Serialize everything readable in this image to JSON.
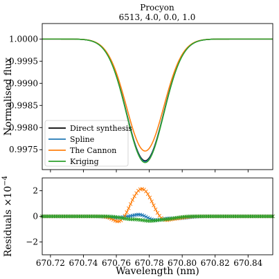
{
  "chart_data": [
    {
      "type": "line",
      "title": "Procyon",
      "subtitle": "6513, 4.0, 0.0, 1.0",
      "xlabel": "",
      "ylabel": "Normalised flux",
      "xlim": [
        670.715,
        670.855
      ],
      "ylim": [
        0.99705,
        1.00035
      ],
      "yticks": [
        0.9975,
        0.998,
        0.9985,
        0.999,
        0.9995,
        1.0
      ],
      "ytick_labels": [
        "0.9975",
        "0.9980",
        "0.9985",
        "0.9990",
        "0.9995",
        "1.0000"
      ],
      "grid": false,
      "legend_position": "bottom-left",
      "series": [
        {
          "name": "Direct synthesis",
          "color": "#000000",
          "center": 670.7775,
          "width": 0.0113,
          "depth": 0.00275
        },
        {
          "name": "Spline",
          "color": "#1f77b4",
          "center": 670.7775,
          "width": 0.0113,
          "depth": 0.00277
        },
        {
          "name": "The Cannon",
          "color": "#ff7f0e",
          "center": 670.7775,
          "width": 0.0113,
          "depth": 0.00253
        },
        {
          "name": "Kriging",
          "color": "#2ca02c",
          "center": 670.7775,
          "width": 0.0113,
          "depth": 0.00279
        }
      ]
    },
    {
      "type": "line",
      "xlabel": "Wavelength (nm)",
      "ylabel": "Residuals ×10",
      "ylabel_exp": "−4",
      "xlim": [
        670.715,
        670.855
      ],
      "ylim": [
        -3.0,
        3.0
      ],
      "xticks": [
        670.72,
        670.74,
        670.76,
        670.78,
        670.8,
        670.82,
        670.84
      ],
      "xtick_labels": [
        "670.72",
        "670.74",
        "670.76",
        "670.78",
        "670.80",
        "670.82",
        "670.84"
      ],
      "yticks": [
        -2,
        0,
        2
      ],
      "ytick_labels": [
        "−2",
        "0",
        "2"
      ],
      "marker": "x",
      "grid": false,
      "series": [
        {
          "color": "#1f77b4",
          "components": [
            {
              "center": 670.775,
              "width": 0.004,
              "amp": 0.2
            },
            {
              "center": 670.76,
              "width": 0.005,
              "amp": -0.1
            },
            {
              "center": 670.783,
              "width": 0.005,
              "amp": -0.3
            },
            {
              "center": 670.797,
              "width": 0.006,
              "amp": -0.15
            }
          ]
        },
        {
          "color": "#ff7f0e",
          "components": [
            {
              "center": 670.7755,
              "width": 0.006,
              "amp": 2.15
            },
            {
              "center": 670.7625,
              "width": 0.004,
              "amp": -0.55
            },
            {
              "center": 670.7875,
              "width": 0.004,
              "amp": -0.4
            },
            {
              "center": 670.796,
              "width": 0.005,
              "amp": -0.15
            }
          ]
        },
        {
          "color": "#2ca02c",
          "components": [
            {
              "center": 670.768,
              "width": 0.005,
              "amp": -0.2
            },
            {
              "center": 670.7795,
              "width": 0.005,
              "amp": -0.3
            },
            {
              "center": 670.79,
              "width": 0.006,
              "amp": -0.2
            }
          ]
        }
      ]
    }
  ]
}
